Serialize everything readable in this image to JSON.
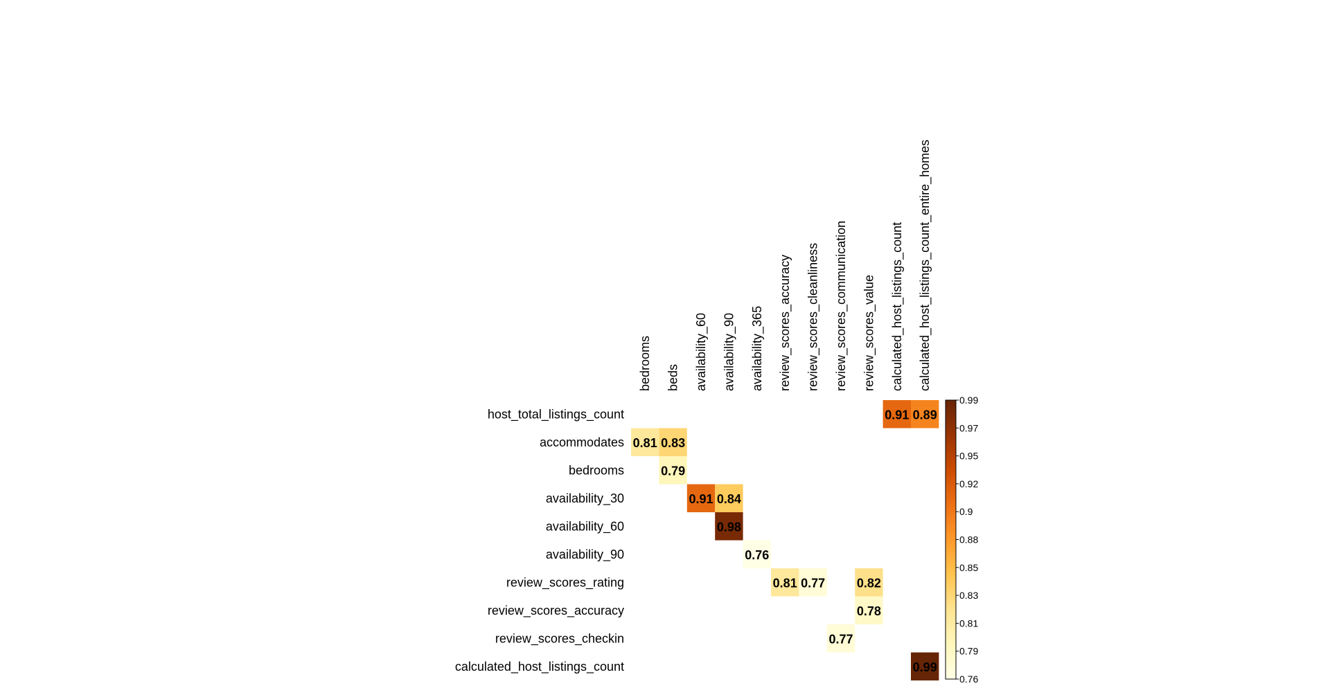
{
  "chart_data": {
    "type": "heatmap",
    "title": "",
    "rows": [
      "host_total_listings_count",
      "accommodates",
      "bedrooms",
      "availability_30",
      "availability_60",
      "availability_90",
      "review_scores_rating",
      "review_scores_accuracy",
      "review_scores_checkin",
      "calculated_host_listings_count"
    ],
    "columns": [
      "bedrooms",
      "beds",
      "availability_60",
      "availability_90",
      "availability_365",
      "review_scores_accuracy",
      "review_scores_cleanliness",
      "review_scores_communication",
      "review_scores_value",
      "calculated_host_listings_count",
      "calculated_host_listings_count_entire_homes"
    ],
    "cells": [
      {
        "row": 0,
        "col": 9,
        "value": 0.91
      },
      {
        "row": 0,
        "col": 10,
        "value": 0.89
      },
      {
        "row": 1,
        "col": 0,
        "value": 0.81
      },
      {
        "row": 1,
        "col": 1,
        "value": 0.83
      },
      {
        "row": 2,
        "col": 1,
        "value": 0.79
      },
      {
        "row": 3,
        "col": 2,
        "value": 0.91
      },
      {
        "row": 3,
        "col": 3,
        "value": 0.84
      },
      {
        "row": 4,
        "col": 3,
        "value": 0.98
      },
      {
        "row": 5,
        "col": 4,
        "value": 0.76
      },
      {
        "row": 6,
        "col": 5,
        "value": 0.81
      },
      {
        "row": 6,
        "col": 6,
        "value": 0.77
      },
      {
        "row": 6,
        "col": 8,
        "value": 0.82
      },
      {
        "row": 7,
        "col": 8,
        "value": 0.78
      },
      {
        "row": 8,
        "col": 7,
        "value": 0.77
      },
      {
        "row": 9,
        "col": 10,
        "value": 0.99
      }
    ],
    "color_scale": {
      "min": 0.76,
      "max": 0.99,
      "colors": [
        "#ffffe5",
        "#fff7bc",
        "#fee391",
        "#fec44f",
        "#fe9929",
        "#ec7014",
        "#cc4c02",
        "#993404",
        "#662506"
      ],
      "ticks": [
        "0.99",
        "0.97",
        "0.95",
        "0.92",
        "0.9",
        "0.88",
        "0.85",
        "0.83",
        "0.81",
        "0.79",
        "0.76"
      ]
    }
  }
}
